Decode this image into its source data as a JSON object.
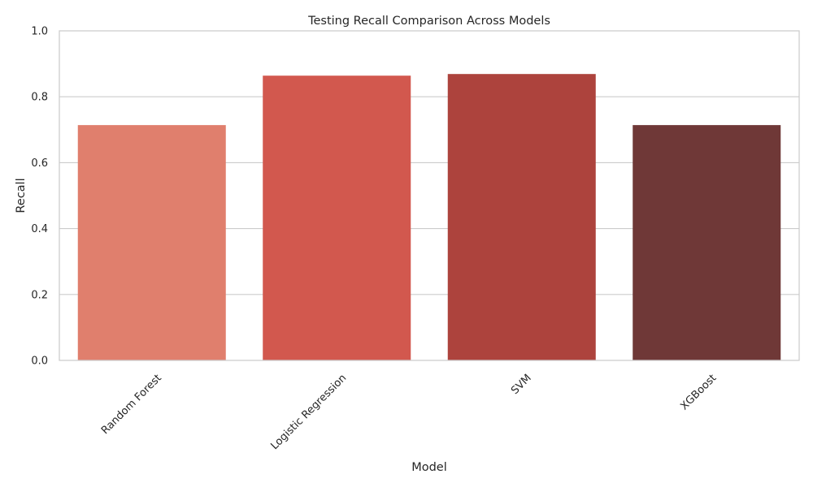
{
  "chart_data": {
    "type": "bar",
    "title": "Testing Recall Comparison Across Models",
    "xlabel": "Model",
    "ylabel": "Recall",
    "categories": [
      "Random Forest",
      "Logistic Regression",
      "SVM",
      "XGBoost"
    ],
    "values": [
      0.714,
      0.864,
      0.869,
      0.714
    ],
    "colors": [
      "#e07f6d",
      "#d2584e",
      "#ad433d",
      "#6f3837"
    ],
    "ylim": [
      0,
      1.0
    ],
    "yticks": [
      "0.0",
      "0.2",
      "0.4",
      "0.6",
      "0.8",
      "1.0"
    ],
    "grid": true,
    "grid_axis": "y",
    "grid_color": "#cccccc",
    "xtick_rotation": 45,
    "legend": false
  }
}
